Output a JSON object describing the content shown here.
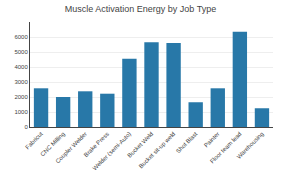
{
  "chart_data": {
    "type": "bar",
    "title": "Muscle Activation Energy by Job Type",
    "categories": [
      "Fabricut",
      "CNC Milling",
      "Coupler Welder",
      "Brake Press",
      "Welder (semi-Auto)",
      "Bucket Weld",
      "Bucket sit-up weld",
      "Shot Blast",
      "Painter",
      "Floor team lead",
      "Warehousing"
    ],
    "values": [
      2580,
      2000,
      2380,
      2220,
      4550,
      5650,
      5600,
      1650,
      2580,
      6350,
      1250
    ],
    "color": "#2878a8",
    "ylim": [
      0,
      7000
    ],
    "yticks": [
      0,
      1000,
      2000,
      3000,
      4000,
      5000,
      6000
    ],
    "grid": true
  }
}
